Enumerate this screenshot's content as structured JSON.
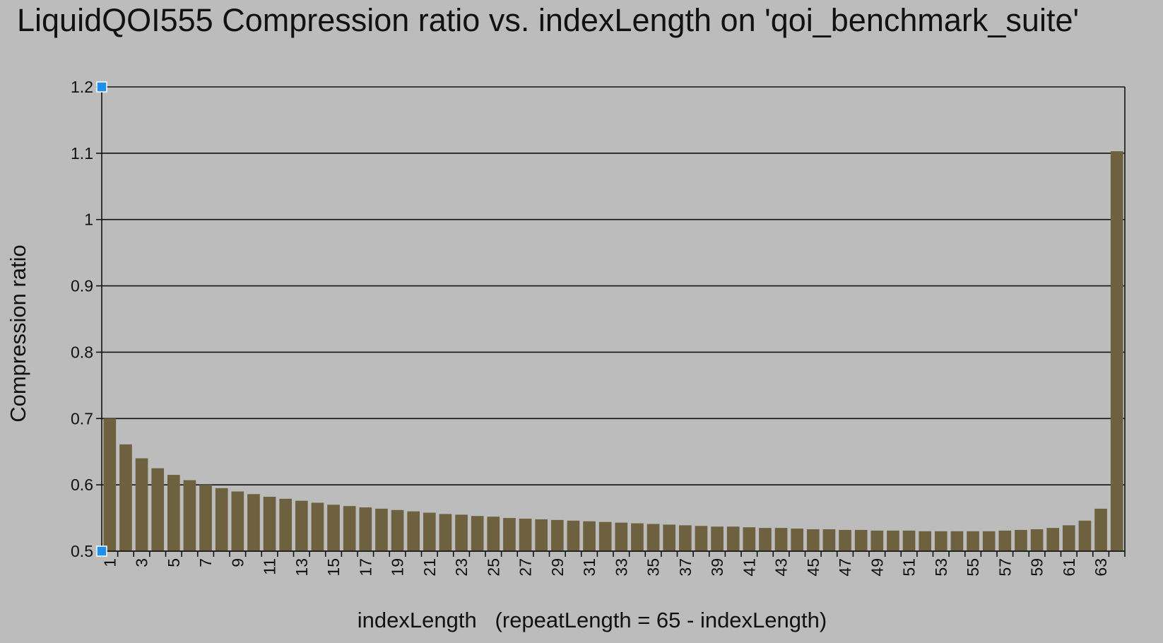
{
  "chart_data": {
    "type": "bar",
    "title": "LiquidQOI555 Compression ratio vs. indexLength on 'qoi_benchmark_suite'",
    "xlabel": "indexLength   (repeatLength = 65 - indexLength)",
    "ylabel": "Compression ratio",
    "ylim": [
      0.5,
      1.2
    ],
    "yticks": [
      "0.5",
      "0.6",
      "0.7",
      "0.8",
      "0.9",
      "1",
      "1.1",
      "1.2"
    ],
    "grid": true,
    "legend": "none",
    "bar_color": "#6e613f",
    "background_color": "#bcbcbc",
    "selection_handle_color": "#1e90e8",
    "categories": [
      1,
      2,
      3,
      4,
      5,
      6,
      7,
      8,
      9,
      10,
      11,
      12,
      13,
      14,
      15,
      16,
      17,
      18,
      19,
      20,
      21,
      22,
      23,
      24,
      25,
      26,
      27,
      28,
      29,
      30,
      31,
      32,
      33,
      34,
      35,
      36,
      37,
      38,
      39,
      40,
      41,
      42,
      43,
      44,
      45,
      46,
      47,
      48,
      49,
      50,
      51,
      52,
      53,
      54,
      55,
      56,
      57,
      58,
      59,
      60,
      61,
      62,
      63,
      64
    ],
    "tick_labels": [
      "1",
      "3",
      "5",
      "7",
      "9",
      "11",
      "13",
      "15",
      "17",
      "19",
      "21",
      "23",
      "25",
      "27",
      "29",
      "31",
      "33",
      "35",
      "37",
      "39",
      "41",
      "43",
      "45",
      "47",
      "49",
      "51",
      "53",
      "55",
      "57",
      "59",
      "61",
      "63"
    ],
    "values": [
      0.7,
      0.661,
      0.64,
      0.625,
      0.615,
      0.607,
      0.6,
      0.595,
      0.59,
      0.586,
      0.582,
      0.579,
      0.576,
      0.573,
      0.57,
      0.568,
      0.566,
      0.564,
      0.562,
      0.56,
      0.558,
      0.556,
      0.555,
      0.553,
      0.552,
      0.55,
      0.549,
      0.548,
      0.547,
      0.546,
      0.545,
      0.544,
      0.543,
      0.542,
      0.541,
      0.54,
      0.539,
      0.538,
      0.537,
      0.537,
      0.536,
      0.535,
      0.535,
      0.534,
      0.533,
      0.533,
      0.532,
      0.532,
      0.531,
      0.531,
      0.531,
      0.53,
      0.53,
      0.53,
      0.53,
      0.53,
      0.531,
      0.532,
      0.533,
      0.535,
      0.539,
      0.546,
      0.564,
      1.103
    ]
  }
}
